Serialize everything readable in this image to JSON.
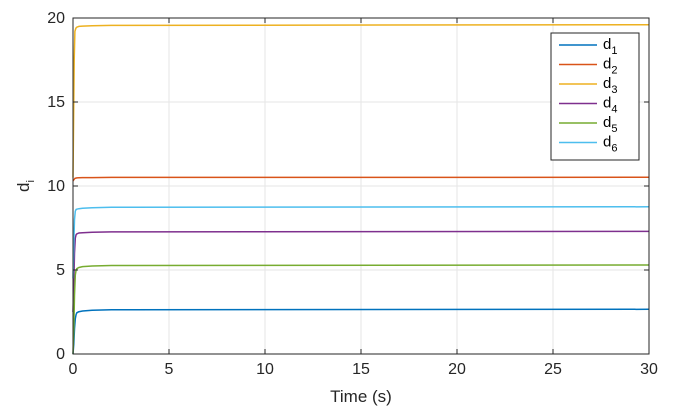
{
  "chart_data": {
    "type": "line",
    "xlabel": "Time (s)",
    "ylabel": "d",
    "ylabel_subscript": "i",
    "xlim": [
      0,
      30
    ],
    "ylim": [
      0,
      20
    ],
    "x_ticks": [
      0,
      5,
      10,
      15,
      20,
      25,
      30
    ],
    "y_ticks": [
      0,
      5,
      10,
      15,
      20
    ],
    "grid": true,
    "legend_position": "top-right",
    "series": [
      {
        "name": "d",
        "subscript": "1",
        "color": "#0072BD",
        "x": [
          0,
          0.04,
          0.08,
          0.12,
          0.16,
          0.2,
          0.3,
          0.5,
          1,
          2,
          30
        ],
        "y": [
          0,
          0.6,
          1.5,
          2.1,
          2.35,
          2.45,
          2.52,
          2.56,
          2.6,
          2.63,
          2.66
        ]
      },
      {
        "name": "d",
        "subscript": "2",
        "color": "#D95319",
        "x": [
          0,
          0.03,
          0.06,
          0.1,
          0.15,
          0.2,
          0.3,
          0.5,
          1,
          2,
          30
        ],
        "y": [
          10.3,
          10.35,
          10.4,
          10.45,
          10.47,
          10.48,
          10.49,
          10.5,
          10.5,
          10.51,
          10.52
        ]
      },
      {
        "name": "d",
        "subscript": "3",
        "color": "#EDB120",
        "x": [
          0,
          0.03,
          0.06,
          0.1,
          0.15,
          0.2,
          0.3,
          0.5,
          1,
          2,
          30
        ],
        "y": [
          10.5,
          14,
          17.5,
          19.2,
          19.4,
          19.45,
          19.5,
          19.52,
          19.54,
          19.56,
          19.6
        ]
      },
      {
        "name": "d",
        "subscript": "4",
        "color": "#7E2F8E",
        "x": [
          0,
          0.04,
          0.08,
          0.12,
          0.16,
          0.2,
          0.3,
          0.5,
          1,
          2,
          30
        ],
        "y": [
          2.5,
          4.2,
          6.0,
          6.9,
          7.1,
          7.15,
          7.2,
          7.22,
          7.25,
          7.27,
          7.3
        ]
      },
      {
        "name": "d",
        "subscript": "5",
        "color": "#77AC30",
        "x": [
          0,
          0.04,
          0.08,
          0.12,
          0.16,
          0.2,
          0.3,
          0.5,
          1,
          2,
          30
        ],
        "y": [
          0,
          1.5,
          3.5,
          4.7,
          5.0,
          5.08,
          5.15,
          5.2,
          5.24,
          5.27,
          5.3
        ]
      },
      {
        "name": "d",
        "subscript": "6",
        "color": "#4DBEEE",
        "x": [
          0,
          0.04,
          0.08,
          0.12,
          0.16,
          0.2,
          0.3,
          0.5,
          1,
          2,
          30
        ],
        "y": [
          4.5,
          6.5,
          8.0,
          8.5,
          8.6,
          8.62,
          8.65,
          8.68,
          8.71,
          8.73,
          8.76
        ]
      }
    ]
  }
}
